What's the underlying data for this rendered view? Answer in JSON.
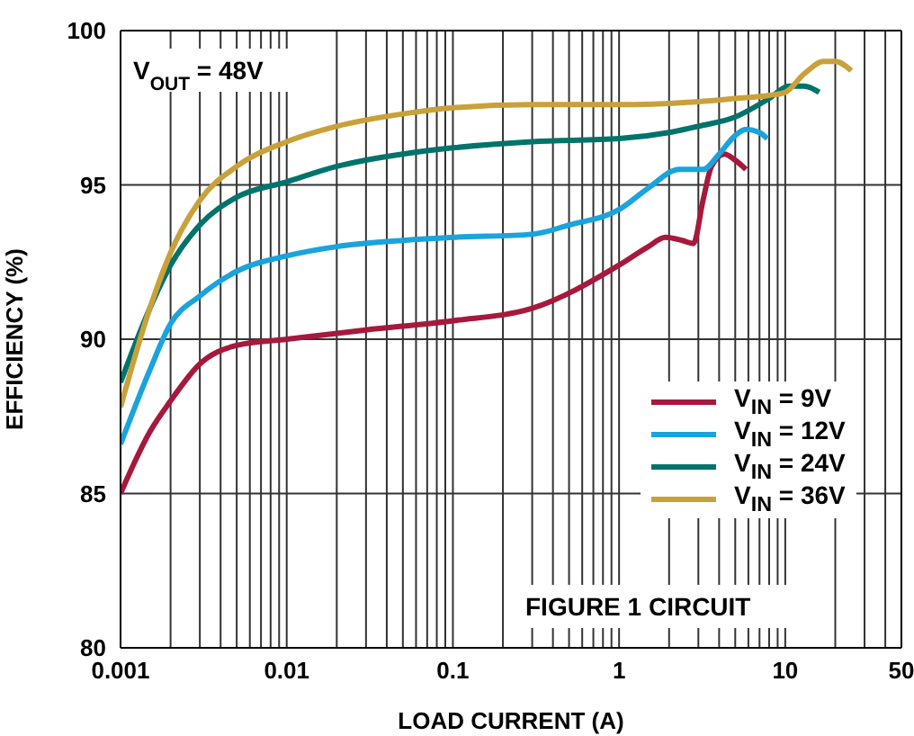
{
  "chart_data": {
    "type": "line",
    "xlabel": "LOAD CURRENT (A)",
    "ylabel": "EFFICIENCY (%)",
    "log": "x",
    "grid": true,
    "legend": "right",
    "marker": "none",
    "line_style": "solid",
    "xlim": [
      0.001,
      50
    ],
    "ylim": [
      80,
      100
    ],
    "xticks": [
      0.001,
      {
        "value": 0.002,
        "label": null
      },
      {
        "value": 0.003,
        "label": null
      },
      {
        "value": 0.004,
        "label": null
      },
      {
        "value": 0.005,
        "label": null
      },
      {
        "value": 0.006,
        "label": null
      },
      {
        "value": 0.007,
        "label": null
      },
      {
        "value": 0.008,
        "label": null
      },
      {
        "value": 0.009,
        "label": null
      },
      0.01,
      {
        "value": 0.02,
        "label": null
      },
      {
        "value": 0.03,
        "label": null
      },
      {
        "value": 0.04,
        "label": null
      },
      {
        "value": 0.05,
        "label": null
      },
      {
        "value": 0.06,
        "label": null
      },
      {
        "value": 0.07,
        "label": null
      },
      {
        "value": 0.08,
        "label": null
      },
      {
        "value": 0.09,
        "label": null
      },
      0.1,
      {
        "value": 0.2,
        "label": null
      },
      {
        "value": 0.3,
        "label": null
      },
      {
        "value": 0.4,
        "label": null
      },
      {
        "value": 0.5,
        "label": null
      },
      {
        "value": 0.6,
        "label": null
      },
      {
        "value": 0.7,
        "label": null
      },
      {
        "value": 0.8,
        "label": null
      },
      {
        "value": 0.9,
        "label": null
      },
      1,
      {
        "value": 2,
        "label": null
      },
      {
        "value": 3,
        "label": null
      },
      {
        "value": 4,
        "label": null
      },
      {
        "value": 5,
        "label": null
      },
      {
        "value": 6,
        "label": null
      },
      {
        "value": 7,
        "label": null
      },
      {
        "value": 8,
        "label": null
      },
      {
        "value": 9,
        "label": null
      },
      10,
      {
        "value": 20,
        "label": null
      },
      {
        "value": 30,
        "label": null
      },
      {
        "value": 40,
        "label": null
      },
      50
    ],
    "yticks": [
      80,
      85,
      90,
      95,
      100
    ],
    "annotations": [
      "V$_{OUT}$ = 48V",
      "FIGURE 1 CIRCUIT"
    ],
    "series": [
      {
        "name": "V$_{IN}$ = 9V",
        "color": "#a6193c",
        "x": [
          0.001,
          0.0015,
          0.002,
          0.003,
          0.005,
          0.01,
          0.03,
          0.1,
          0.3,
          1,
          1.5,
          1.9,
          2.4,
          2.8,
          3.2,
          3.6,
          4.3,
          5,
          5.8
        ],
        "values": [
          85,
          87,
          88,
          89.2,
          89.8,
          90,
          90.3,
          90.6,
          91,
          92.4,
          93,
          93.3,
          93.2,
          93.1,
          94.5,
          95.6,
          96,
          95.8,
          95.5
        ]
      },
      {
        "name": "V$_{IN}$ = 12V",
        "color": "#1aa3dc",
        "x": [
          0.001,
          0.0015,
          0.002,
          0.003,
          0.005,
          0.01,
          0.02,
          0.05,
          0.1,
          0.3,
          0.5,
          1,
          1.5,
          2.3,
          3.2,
          4,
          5,
          5.8,
          7,
          7.8
        ],
        "values": [
          86.6,
          89,
          90.5,
          91.4,
          92.2,
          92.7,
          93,
          93.2,
          93.3,
          93.4,
          93.7,
          94.2,
          94.9,
          95.5,
          95.5,
          96,
          96.6,
          96.8,
          96.7,
          96.5
        ]
      },
      {
        "name": "V$_{IN}$ = 24V",
        "color": "#00736b",
        "x": [
          0.001,
          0.0015,
          0.002,
          0.003,
          0.005,
          0.01,
          0.02,
          0.05,
          0.1,
          0.3,
          1,
          2,
          3,
          5,
          8,
          10.5,
          13,
          16
        ],
        "values": [
          88.6,
          91,
          92.4,
          93.7,
          94.6,
          95.1,
          95.6,
          96,
          96.2,
          96.4,
          96.5,
          96.7,
          96.9,
          97.2,
          97.8,
          98.2,
          98.2,
          98
        ]
      },
      {
        "name": "V$_{IN}$ = 36V",
        "color": "#c9a13a",
        "x": [
          0.001,
          0.0015,
          0.002,
          0.003,
          0.005,
          0.01,
          0.02,
          0.05,
          0.1,
          0.3,
          1,
          3,
          5,
          8,
          10,
          13,
          17,
          20,
          25
        ],
        "values": [
          87.8,
          91,
          92.8,
          94.5,
          95.6,
          96.4,
          96.9,
          97.3,
          97.5,
          97.6,
          97.6,
          97.7,
          97.8,
          97.9,
          98,
          98.6,
          99,
          99,
          98.7
        ]
      }
    ]
  }
}
